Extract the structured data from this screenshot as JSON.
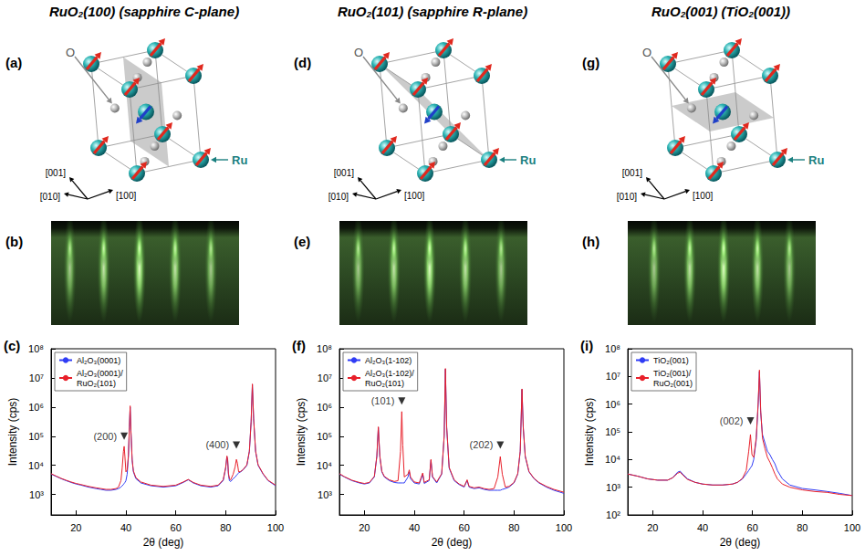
{
  "columns": [
    {
      "title": "RuO₂(100) (sapphire C-plane)",
      "letters": [
        "(a)",
        "(b)",
        "(c)"
      ],
      "structure": {
        "plane": [
          1,
          0,
          0
        ],
        "oxygen_label": "O",
        "ruthenium_label": "Ru",
        "axes": [
          "[001]",
          "[010]",
          "[100]"
        ]
      }
    },
    {
      "title": "RuO₂(101) (sapphire R-plane)",
      "letters": [
        "(d)",
        "(e)",
        "(f)"
      ],
      "structure": {
        "plane": [
          1,
          0,
          1
        ],
        "oxygen_label": "O",
        "ruthenium_label": "Ru",
        "axes": [
          "[001]",
          "[010]",
          "[100]"
        ]
      }
    },
    {
      "title": "RuO₂(001) (TiO₂(001))",
      "letters": [
        "(g)",
        "(h)",
        "(i)"
      ],
      "structure": {
        "plane": [
          0,
          0,
          1
        ],
        "oxygen_label": "O",
        "ruthenium_label": "Ru",
        "axes": [
          "[001]",
          "[010]",
          "[100]"
        ]
      }
    }
  ],
  "chart_data": [
    {
      "type": "line",
      "xlabel": "2θ (deg)",
      "ylabel": "Intensity (cps)",
      "log": "y",
      "legend": "upper left",
      "xlim": [
        10,
        100
      ],
      "xticks": [
        20,
        40,
        60,
        80,
        100
      ],
      "ylim": [
        200,
        100000000
      ],
      "yticks": [
        {
          "value": 1000,
          "label": "10³"
        },
        {
          "value": 10000,
          "label": "10⁴"
        },
        {
          "value": 100000,
          "label": "10⁵"
        },
        {
          "value": 1000000,
          "label": "10⁶"
        },
        {
          "value": 10000000,
          "label": "10⁷"
        },
        {
          "value": 100000000,
          "label": "10⁸"
        }
      ],
      "x": [
        10,
        12,
        14,
        16,
        18,
        20,
        22,
        25,
        28,
        30,
        32,
        34,
        36,
        37,
        38,
        38.5,
        39,
        39.3,
        39.6,
        40,
        40.5,
        41,
        41.4,
        41.7,
        42,
        42.5,
        43,
        44,
        46,
        50,
        55,
        60,
        63,
        65,
        67,
        70,
        74,
        77,
        79,
        80,
        80.5,
        80.8,
        81.1,
        81.5,
        82,
        83,
        83.8,
        84.3,
        84.7,
        85.2,
        86,
        87,
        88.5,
        89.5,
        90.2,
        90.7,
        91.2,
        92,
        93,
        95,
        97,
        100
      ],
      "series": [
        {
          "name": "Al₂O₃(0001)",
          "color": "#2f3cf5",
          "values": [
            5000,
            4200,
            3500,
            3000,
            2600,
            2300,
            2100,
            1800,
            1600,
            1500,
            1400,
            1400,
            1500,
            1600,
            1800,
            2000,
            2200,
            2400,
            2600,
            3000,
            5000,
            20000,
            200000,
            1000000,
            150000,
            15000,
            6000,
            3500,
            2500,
            2000,
            1800,
            2000,
            2600,
            3200,
            2500,
            2000,
            1800,
            2000,
            3000,
            8000,
            20000,
            15000,
            5000,
            3000,
            2800,
            3500,
            4000,
            4500,
            5000,
            5500,
            6000,
            7000,
            10000,
            30000,
            300000,
            6000000,
            400000,
            30000,
            10000,
            5000,
            3000,
            2000
          ]
        },
        {
          "name": "Al₂O₃(0001)/RuO₂(101)",
          "color": "#e8202a",
          "values": [
            5200,
            4300,
            3600,
            3100,
            2700,
            2400,
            2200,
            1900,
            1700,
            1600,
            1500,
            1500,
            1600,
            1800,
            3000,
            8000,
            30000,
            45000,
            20000,
            6000,
            7000,
            22000,
            210000,
            1100000,
            160000,
            16000,
            6500,
            3800,
            2700,
            2100,
            1900,
            2100,
            2700,
            3300,
            2600,
            2100,
            1900,
            2100,
            3200,
            8500,
            21000,
            16000,
            5500,
            3500,
            3200,
            5000,
            9000,
            16000,
            12000,
            6000,
            6200,
            7200,
            10500,
            31000,
            320000,
            6200000,
            420000,
            31000,
            10500,
            5200,
            3100,
            2100
          ]
        }
      ],
      "annotations": [
        {
          "text": "(200)",
          "x": 39.3,
          "y": 100000
        },
        {
          "text": "(400)",
          "x": 84.3,
          "y": 50000
        }
      ]
    },
    {
      "type": "line",
      "xlabel": "2θ (deg)",
      "ylabel": "Intensity (cps)",
      "log": "y",
      "legend": "upper left",
      "xlim": [
        10,
        100
      ],
      "xticks": [
        20,
        40,
        60,
        80,
        100
      ],
      "ylim": [
        200,
        100000000
      ],
      "yticks": [
        {
          "value": 1000,
          "label": "10³"
        },
        {
          "value": 10000,
          "label": "10⁴"
        },
        {
          "value": 100000,
          "label": "10⁵"
        },
        {
          "value": 1000000,
          "label": "10⁶"
        },
        {
          "value": 10000000,
          "label": "10⁷"
        },
        {
          "value": 100000000,
          "label": "10⁸"
        }
      ],
      "x": [
        10,
        12,
        15,
        18,
        20,
        22,
        24,
        25,
        25.6,
        26.2,
        27,
        28,
        30,
        32,
        33.5,
        34.5,
        35,
        35.4,
        36,
        37.5,
        38,
        38.5,
        40,
        42,
        43.4,
        44,
        46,
        46.7,
        47.3,
        49,
        51,
        52,
        52.5,
        53,
        54,
        56,
        58,
        60,
        61.2,
        62,
        64,
        66,
        68,
        70,
        72,
        73.5,
        74.5,
        75.3,
        76.5,
        78,
        80,
        81.5,
        82.5,
        83.2,
        83.7,
        84.5,
        86,
        88,
        90,
        93,
        96,
        100
      ],
      "series": [
        {
          "name": "Al₂O₃(1-102)",
          "color": "#2f3cf5",
          "values": [
            5000,
            4000,
            3000,
            2500,
            2300,
            2500,
            4000,
            20000,
            200000,
            20000,
            6000,
            4000,
            3000,
            2600,
            2500,
            2500,
            2500,
            2500,
            2500,
            4000,
            6000,
            3500,
            2500,
            2300,
            5000,
            2400,
            3000,
            15000,
            4000,
            2500,
            5000,
            100000,
            20000000,
            200000,
            8000,
            3000,
            2200,
            1800,
            3000,
            1800,
            1600,
            1700,
            1500,
            1400,
            1400,
            1400,
            1400,
            1500,
            1600,
            1800,
            2500,
            5000,
            30000,
            4000000,
            200000,
            20000,
            6000,
            3500,
            2500,
            1800,
            1400,
            1100
          ]
        },
        {
          "name": "Al₂O₃(1-102)/RuO₂(101)",
          "color": "#e8202a",
          "values": [
            5200,
            4100,
            3100,
            2600,
            2400,
            2600,
            4200,
            21000,
            210000,
            21000,
            6300,
            4200,
            3200,
            2800,
            3000,
            30000,
            700000,
            50000,
            4000,
            5000,
            7000,
            4000,
            2700,
            2500,
            5500,
            2600,
            3200,
            16000,
            4200,
            2700,
            5200,
            105000,
            21000000,
            210000,
            8500,
            3200,
            2300,
            1900,
            3200,
            1900,
            1700,
            1800,
            1600,
            1500,
            1600,
            4000,
            20000,
            5000,
            1800,
            1900,
            2600,
            5200,
            31000,
            4200000,
            210000,
            21000,
            6200,
            3600,
            2600,
            1900,
            1500,
            1200
          ]
        }
      ],
      "annotations": [
        {
          "text": "(101)",
          "x": 35,
          "y": 1600000
        },
        {
          "text": "(202)",
          "x": 74.5,
          "y": 50000
        }
      ]
    },
    {
      "type": "line",
      "xlabel": "2θ (deg)",
      "ylabel": "Intensity (cps)",
      "log": "y",
      "legend": "upper left",
      "xlim": [
        10,
        100
      ],
      "xticks": [
        20,
        40,
        60,
        80,
        100
      ],
      "ylim": [
        100,
        100000000
      ],
      "yticks": [
        {
          "value": 100,
          "label": "10²"
        },
        {
          "value": 1000,
          "label": "10³"
        },
        {
          "value": 10000,
          "label": "10⁴"
        },
        {
          "value": 100000,
          "label": "10⁵"
        },
        {
          "value": 1000000,
          "label": "10⁶"
        },
        {
          "value": 10000000,
          "label": "10⁷"
        },
        {
          "value": 100000000,
          "label": "10⁸"
        }
      ],
      "x": [
        10,
        14,
        18,
        22,
        26,
        28,
        30,
        31,
        32,
        34,
        37,
        40,
        44,
        48,
        52,
        54,
        56,
        57.5,
        58.5,
        59.2,
        59.8,
        60.5,
        61.5,
        62.3,
        62.8,
        63.3,
        64,
        65,
        66,
        67,
        68,
        69,
        70,
        72,
        75,
        80,
        85,
        90,
        95,
        100
      ],
      "series": [
        {
          "name": "TiO₂(001)",
          "color": "#2f3cf5",
          "values": [
            3000,
            2500,
            2000,
            1800,
            1800,
            2200,
            3500,
            3800,
            3000,
            2000,
            1500,
            1300,
            1200,
            1200,
            1300,
            1500,
            2000,
            3000,
            4000,
            5000,
            6000,
            10000,
            50000,
            1000000,
            15000000,
            500000,
            80000,
            40000,
            20000,
            15000,
            10000,
            7000,
            4000,
            2000,
            1200,
            900,
            800,
            700,
            600,
            500
          ]
        },
        {
          "name": "TiO₂(001)/RuO₂(001)",
          "color": "#e8202a",
          "values": [
            3000,
            2500,
            2000,
            1800,
            1800,
            2200,
            3200,
            3500,
            2800,
            1900,
            1500,
            1300,
            1200,
            1200,
            1300,
            1500,
            2100,
            4000,
            20000,
            80000,
            15000,
            12000,
            60000,
            1200000,
            17000000,
            600000,
            60000,
            25000,
            12000,
            8000,
            5000,
            3000,
            2000,
            1300,
            1000,
            800,
            700,
            650,
            550,
            500
          ]
        }
      ],
      "annotations": [
        {
          "text": "(002)",
          "x": 59.2,
          "y": 250000
        }
      ]
    }
  ]
}
